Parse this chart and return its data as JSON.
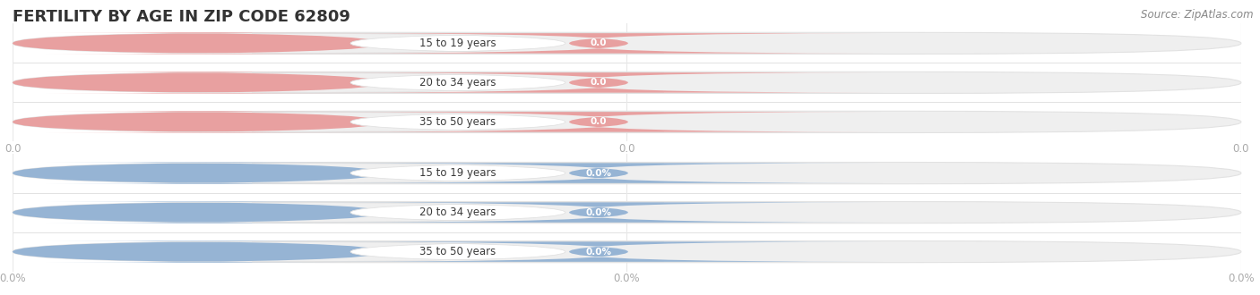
{
  "title": "FERTILITY BY AGE IN ZIP CODE 62809",
  "source": "Source: ZipAtlas.com",
  "top_section": {
    "categories": [
      "15 to 19 years",
      "20 to 34 years",
      "35 to 50 years"
    ],
    "values": [
      0.0,
      0.0,
      0.0
    ],
    "bar_color": "#e8a0a0",
    "axis_labels": [
      "0.0",
      "0.0",
      "0.0"
    ]
  },
  "bottom_section": {
    "categories": [
      "15 to 19 years",
      "20 to 34 years",
      "35 to 50 years"
    ],
    "values": [
      0.0,
      0.0,
      0.0
    ],
    "bar_color": "#96b4d4",
    "axis_labels": [
      "0.0%",
      "0.0%",
      "0.0%"
    ]
  },
  "background_color": "#ffffff",
  "title_color": "#333333",
  "source_color": "#888888",
  "axis_tick_color": "#aaaaaa",
  "bar_bg_color": "#efefef",
  "bar_bg_edge_color": "#e2e2e2",
  "separator_color": "#dddddd",
  "grid_color": "#e8e8e8",
  "title_fontsize": 13,
  "source_fontsize": 8.5,
  "label_fontsize": 8.5,
  "value_fontsize": 7.5,
  "tick_fontsize": 8.5
}
